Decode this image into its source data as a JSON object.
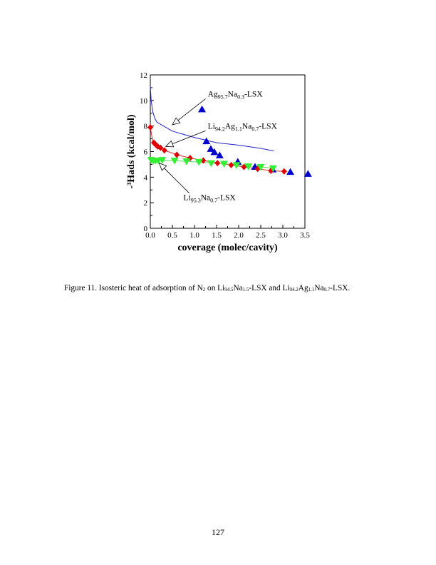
{
  "chart_data": {
    "type": "scatter",
    "xlabel": "coverage (molec/cavity)",
    "ylabel": "-³Hads (kcal/mol)",
    "xlim": [
      0,
      3.5
    ],
    "ylim": [
      0,
      12
    ],
    "xticks": [
      "0.0",
      "0.5",
      "1.0",
      "1.5",
      "2.0",
      "2.5",
      "3.0",
      "3.5"
    ],
    "yticks": [
      "0",
      "2",
      "4",
      "6",
      "8",
      "10",
      "12"
    ],
    "series": [
      {
        "name": "blue-triangles",
        "marker": "triangle-up",
        "color": "#0000cc",
        "x": [
          1.17,
          1.27,
          1.37,
          1.45,
          1.57,
          1.98,
          2.37,
          2.77,
          3.17,
          3.57
        ],
        "y": [
          9.3,
          6.8,
          6.2,
          5.95,
          5.7,
          5.2,
          4.8,
          4.6,
          4.4,
          4.25
        ]
      },
      {
        "name": "red-diamonds",
        "marker": "diamond",
        "color": "#e00000",
        "x": [
          0,
          0.08,
          0.12,
          0.17,
          0.23,
          0.32,
          0.6,
          0.9,
          1.2,
          1.52,
          1.83,
          2.12,
          2.43,
          2.73,
          3.03
        ],
        "y": [
          7.9,
          6.7,
          6.55,
          6.4,
          6.3,
          6.1,
          5.75,
          5.5,
          5.3,
          5.1,
          4.95,
          4.8,
          4.65,
          4.5,
          4.45
        ]
      },
      {
        "name": "green-triangles",
        "marker": "triangle-down",
        "color": "#33ee33",
        "x": [
          0.02,
          0.07,
          0.12,
          0.18,
          0.27,
          0.55,
          0.82,
          1.1,
          1.38,
          1.67,
          1.95,
          2.22,
          2.5,
          2.78
        ],
        "y": [
          5.35,
          5.3,
          5.3,
          5.3,
          5.35,
          5.3,
          5.25,
          5.2,
          5.1,
          5.05,
          4.95,
          4.85,
          4.8,
          4.7
        ]
      },
      {
        "name": "blue-line",
        "marker": "line",
        "color": "#2222cc",
        "x": [
          0,
          0.02,
          0.05,
          0.1,
          0.15,
          0.3,
          0.5,
          1.0,
          1.5,
          2.0,
          2.5,
          2.8
        ],
        "y": [
          11.1,
          10.0,
          9.2,
          8.6,
          8.3,
          8.0,
          7.6,
          7.1,
          6.7,
          6.5,
          6.25,
          6.05
        ]
      },
      {
        "name": "red-line",
        "marker": "line",
        "color": "#dd2222",
        "x": [
          0,
          0.05,
          0.1,
          0.2,
          0.32,
          0.6,
          0.9,
          1.2,
          1.52,
          1.83,
          2.12,
          2.43,
          2.73,
          3.03,
          3.1
        ],
        "y": [
          7.9,
          6.9,
          6.6,
          6.35,
          6.1,
          5.75,
          5.5,
          5.3,
          5.1,
          4.95,
          4.8,
          4.65,
          4.5,
          4.45,
          4.45
        ]
      },
      {
        "name": "green-line",
        "marker": "line",
        "color": "#55dd55",
        "x": [
          0,
          0.5,
          1.0,
          1.5,
          2.0,
          2.5,
          2.8
        ],
        "y": [
          5.3,
          5.3,
          5.2,
          5.1,
          4.95,
          4.8,
          4.7
        ]
      }
    ],
    "annotations": [
      {
        "base": "Ag",
        "s1": "95.7",
        "mid": "Na",
        "s2": "0.3",
        "tail": "-LSX",
        "text_at": [
          1.3,
          10.3
        ],
        "arrow_to": [
          0.5,
          8.1
        ]
      },
      {
        "base": "Li",
        "s1": "94.2",
        "mid": "Ag",
        "s2": "1.1",
        "mid2": "Na",
        "s3": "0.7",
        "tail": "-LSX",
        "text_at": [
          1.3,
          7.8
        ],
        "arrow_to": [
          0.35,
          6.4
        ]
      },
      {
        "base": "Li",
        "s1": "95.3",
        "mid": "Na",
        "s2": "0.7",
        "tail": "-LSX",
        "text_at": [
          0.75,
          2.2
        ],
        "arrow_to": [
          0.2,
          5.1
        ]
      }
    ]
  },
  "caption": {
    "prefix": "Figure 11.  Isosteric heat of adsorption of N",
    "n_sub": "2",
    "on": " on Li",
    "a1": "94.5",
    "na": "Na",
    "a2": "1.5",
    "and": "-LSX and Li",
    "b1": "94.2",
    "ag": "Ag",
    "b2": "1.1",
    "na2": "Na",
    "b3": "0.7",
    "end": "-LSX."
  },
  "page_number": "127"
}
